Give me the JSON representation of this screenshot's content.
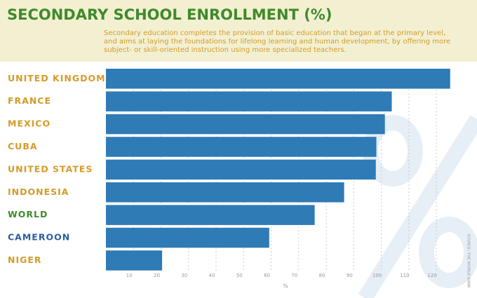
{
  "chart_data": {
    "type": "bar",
    "orientation": "horizontal",
    "title": "SECONDARY  SCHOOL ENROLLMENT (%)",
    "subtitle": [
      "Secondary education completes the provision of basic education that began at the primary level,",
      "and aims at laying the foundations for lifelong learning and human development, by offering more",
      "subject- or skill-oriented instruction using more specialized teachers."
    ],
    "categories": [
      "UNITED KINGDOM",
      "FRANCE",
      "MEXICO",
      "CUBA",
      "UNITED STATES",
      "INDONESIA",
      "WORLD",
      "CAMEROON",
      "NIGER"
    ],
    "values": [
      125,
      103.8,
      101.3,
      98.2,
      98,
      86.5,
      75.8,
      59.3,
      20.4
    ],
    "label_colors": [
      "#d49b28",
      "#d49b28",
      "#d49b28",
      "#d49b28",
      "#d49b28",
      "#d49b28",
      "#3f8a2c",
      "#2a5f9e",
      "#d49b28"
    ],
    "color": "#2e7bb6",
    "xlim": [
      0,
      135
    ],
    "xticks": [
      10,
      20,
      30,
      40,
      50,
      60,
      70,
      80,
      90,
      100,
      110,
      120
    ],
    "xlabel": "%",
    "grid": true,
    "source": "SOURCE: THE WORLD BANK"
  }
}
